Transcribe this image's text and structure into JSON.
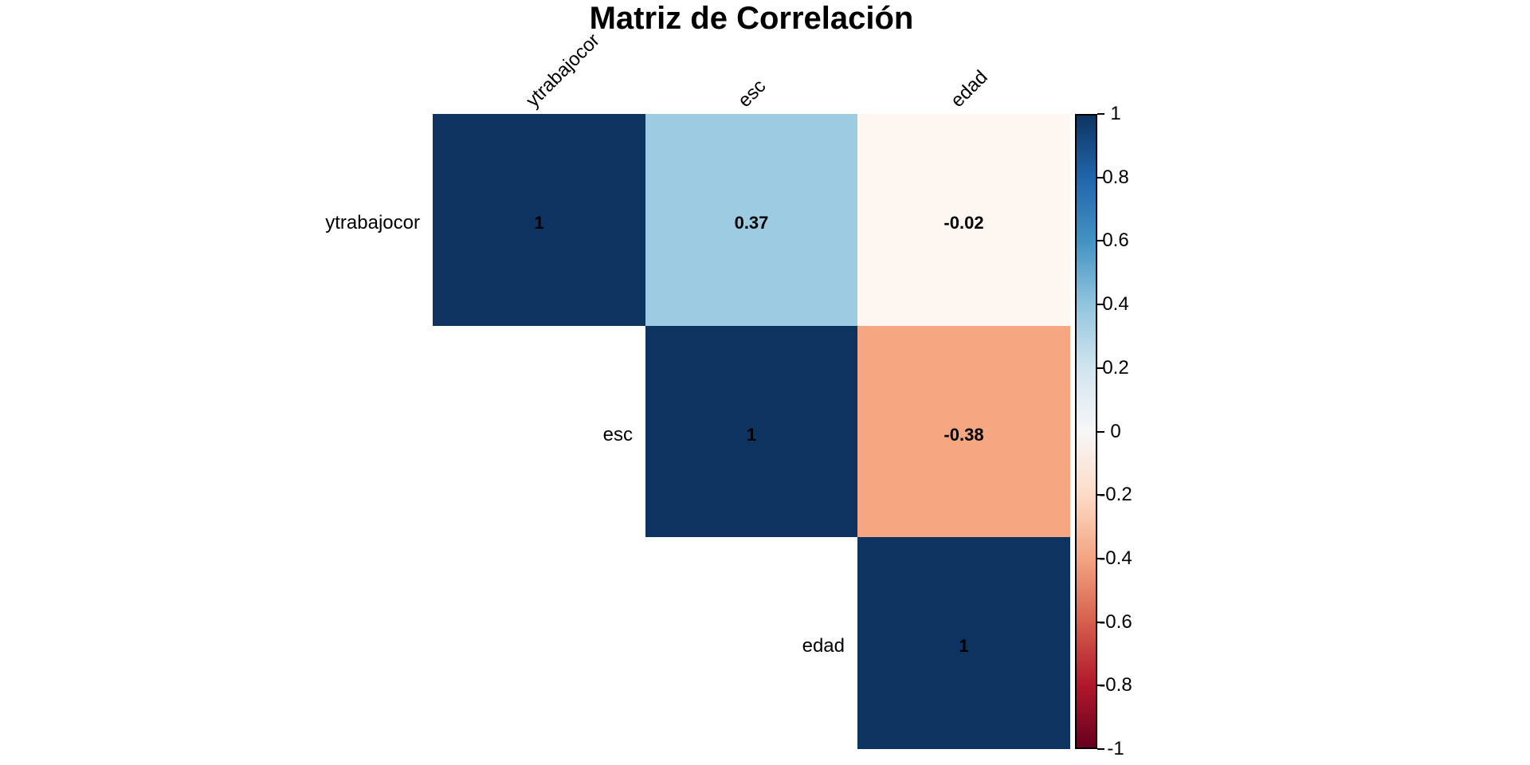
{
  "title": "Matriz de Correlación",
  "chart_data": {
    "type": "heatmap",
    "subtype": "correlation_matrix_upper_triangle",
    "title": "Matriz de Correlación",
    "variables": [
      "ytrabajocor",
      "esc",
      "edad"
    ],
    "cells": [
      {
        "row": "ytrabajocor",
        "col": "ytrabajocor",
        "value": 1,
        "label": "1",
        "color": "#0d3461"
      },
      {
        "row": "ytrabajocor",
        "col": "esc",
        "value": 0.37,
        "label": "0.37",
        "color": "#9dcbe2"
      },
      {
        "row": "ytrabajocor",
        "col": "edad",
        "value": -0.02,
        "label": "-0.02",
        "color": "#fdf6f1"
      },
      {
        "row": "esc",
        "col": "esc",
        "value": 1,
        "label": "1",
        "color": "#0d3461"
      },
      {
        "row": "esc",
        "col": "edad",
        "value": -0.38,
        "label": "-0.38",
        "color": "#f5a782"
      },
      {
        "row": "edad",
        "col": "edad",
        "value": 1,
        "label": "1",
        "color": "#0d3461"
      }
    ],
    "value_text_color": "#000000",
    "label_text_color": "#000000",
    "colorbar": {
      "position": "right",
      "range": [
        -1,
        1
      ],
      "tick_values": [
        1,
        0.8,
        0.6,
        0.4,
        0.2,
        0,
        -0.2,
        -0.4,
        -0.6,
        -0.8,
        -1
      ],
      "tick_labels": [
        "1",
        "0.8",
        "0.6",
        "0.4",
        "0.2",
        "0",
        "-0.2",
        "-0.4",
        "-0.6",
        "-0.8",
        "-1"
      ],
      "gradient_top_to_bottom": [
        "#0d3461",
        "#2166ac",
        "#4393c3",
        "#92c5de",
        "#d1e5f0",
        "#f7f7f7",
        "#fddbc7",
        "#f4a582",
        "#d6604d",
        "#b2182b",
        "#67001f"
      ]
    },
    "grid": false,
    "background": "#ffffff"
  }
}
